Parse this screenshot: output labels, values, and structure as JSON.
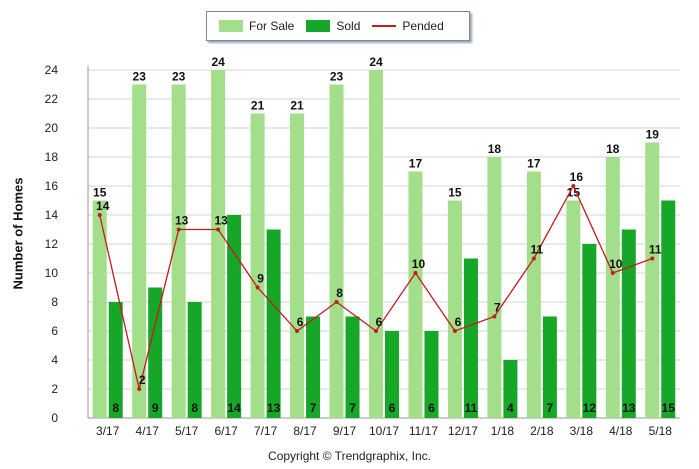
{
  "chart_data": {
    "type": "bar",
    "categories": [
      "3/17",
      "4/17",
      "5/17",
      "6/17",
      "7/17",
      "8/17",
      "9/17",
      "10/17",
      "11/17",
      "12/17",
      "1/18",
      "2/18",
      "3/18",
      "4/18",
      "5/18"
    ],
    "series": [
      {
        "name": "For Sale",
        "type": "bar",
        "color": "#a3df8a",
        "values": [
          15,
          23,
          23,
          24,
          21,
          21,
          23,
          24,
          17,
          15,
          18,
          17,
          15,
          18,
          19
        ]
      },
      {
        "name": "Sold",
        "type": "bar",
        "color": "#16a628",
        "values": [
          8,
          9,
          8,
          14,
          13,
          7,
          7,
          6,
          6,
          11,
          4,
          7,
          12,
          13,
          15
        ]
      },
      {
        "name": "Pended",
        "type": "line",
        "color": "#c8191e",
        "values": [
          14,
          2,
          13,
          13,
          9,
          6,
          8,
          6,
          10,
          6,
          7,
          11,
          16,
          10,
          11
        ]
      }
    ],
    "ylabel": "Number of Homes",
    "xlabel": "",
    "ylim": [
      0,
      24
    ],
    "yticks": [
      0,
      2,
      4,
      6,
      8,
      10,
      12,
      14,
      16,
      18,
      20,
      22,
      24
    ],
    "grid": true,
    "legend_position": "top-center"
  },
  "footer": {
    "copyright": "Copyright © Trendgraphix, Inc."
  }
}
